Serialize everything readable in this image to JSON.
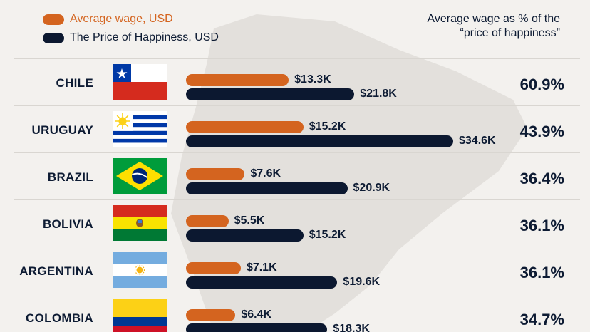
{
  "legend": {
    "wage_label": "Average wage, USD",
    "price_label": "The Price of Happiness, USD"
  },
  "ratio_header": {
    "line1": "Average wage as % of the",
    "line2": "“price of happiness”"
  },
  "colors": {
    "wage": "#d4641f",
    "price": "#0c1830",
    "background": "#f3f1ee",
    "map": "#e2dfdb"
  },
  "chart_data": {
    "type": "bar",
    "orientation": "horizontal",
    "categories": [
      "CHILE",
      "URUGUAY",
      "BRAZIL",
      "BOLIVIA",
      "ARGENTINA",
      "COLOMBIA"
    ],
    "series": [
      {
        "name": "Average wage, USD",
        "values": [
          13.3,
          15.2,
          7.6,
          5.5,
          7.1,
          6.4
        ],
        "labels": [
          "$13.3K",
          "$15.2K",
          "$7.6K",
          "$5.5K",
          "$7.1K",
          "$6.4K"
        ]
      },
      {
        "name": "The Price of Happiness, USD",
        "values": [
          21.8,
          34.6,
          20.9,
          15.2,
          19.6,
          18.3
        ],
        "labels": [
          "$21.8K",
          "$34.6K",
          "$20.9K",
          "$15.2K",
          "$19.6K",
          "$18.3K"
        ]
      }
    ],
    "ratio": [
      "60.9%",
      "43.9%",
      "36.4%",
      "36.1%",
      "36.1%",
      "34.7%"
    ],
    "flags": [
      "chile-flag-icon",
      "uruguay-flag-icon",
      "brazil-flag-icon",
      "bolivia-flag-icon",
      "argentina-flag-icon",
      "colombia-flag-icon"
    ],
    "xlim": [
      0,
      34.6
    ],
    "grid": false,
    "legend_position": "top-left"
  }
}
